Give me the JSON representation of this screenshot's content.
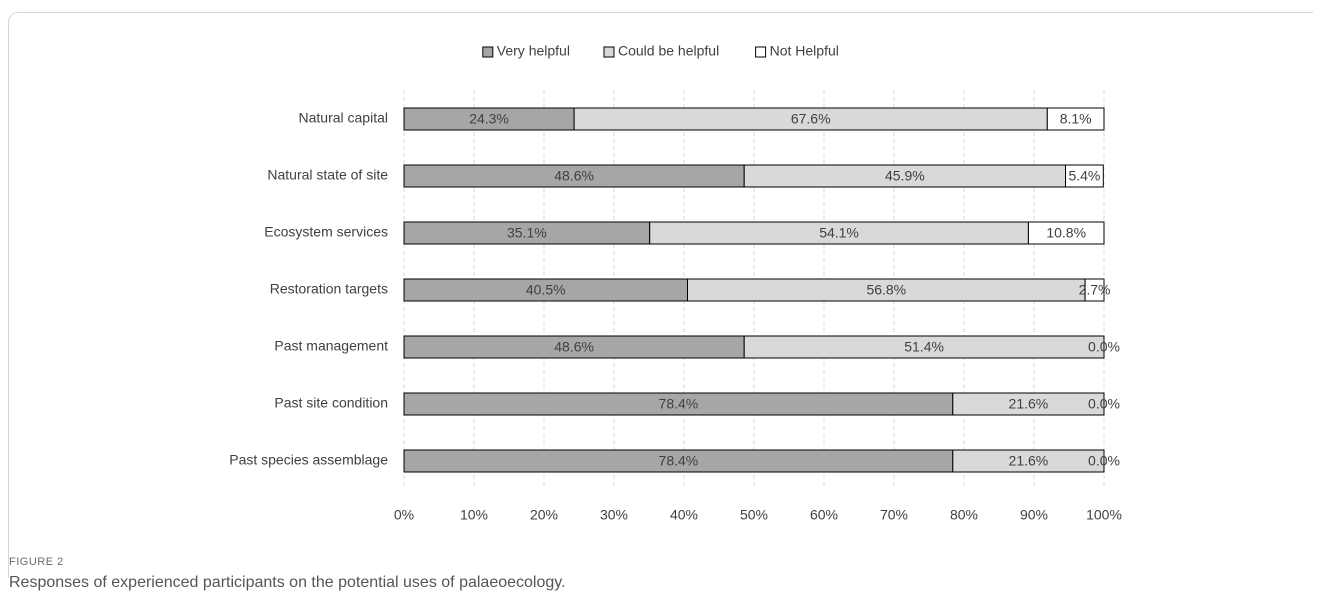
{
  "figure": {
    "label": "FIGURE 2",
    "caption": "Responses of experienced participants on the potential uses of palaeoecology."
  },
  "colors": {
    "very_helpful": "#a6a6a6",
    "could_be_helpful": "#d9d9d9",
    "not_helpful": "#ffffff",
    "bar_stroke": "#000000",
    "grid": "#d9d9d9",
    "text": "#404040"
  },
  "chart_data": {
    "type": "bar",
    "orientation": "horizontal",
    "stacked": "percent",
    "categories": [
      "Natural capital",
      "Natural state of site",
      "Ecosystem services",
      "Restoration targets",
      "Past management",
      "Past site condition",
      "Past species assemblage"
    ],
    "series": [
      {
        "name": "Very helpful",
        "values": [
          24.3,
          48.6,
          35.1,
          40.5,
          48.6,
          78.4,
          78.4
        ],
        "labels": [
          "24.3%",
          "48.6%",
          "35.1%",
          "40.5%",
          "48.6%",
          "78.4%",
          "78.4%"
        ]
      },
      {
        "name": "Could be helpful",
        "values": [
          67.6,
          45.9,
          54.1,
          56.8,
          51.4,
          21.6,
          21.6
        ],
        "labels": [
          "67.6%",
          "45.9%",
          "54.1%",
          "56.8%",
          "51.4%",
          "21.6%",
          "21.6%"
        ]
      },
      {
        "name": "Not Helpful",
        "values": [
          8.1,
          5.4,
          10.8,
          2.7,
          0.0,
          0.0,
          0.0
        ],
        "labels": [
          "8.1%",
          "5.4%",
          "10.8%",
          "2.7%",
          "0.0%",
          "0.0%",
          "0.0%"
        ]
      }
    ],
    "x_ticks": [
      "0%",
      "10%",
      "20%",
      "30%",
      "40%",
      "50%",
      "60%",
      "70%",
      "80%",
      "90%",
      "100%"
    ],
    "xlim": [
      0,
      100
    ],
    "grid": "vertical, dashed",
    "legend_position": "top-center"
  }
}
